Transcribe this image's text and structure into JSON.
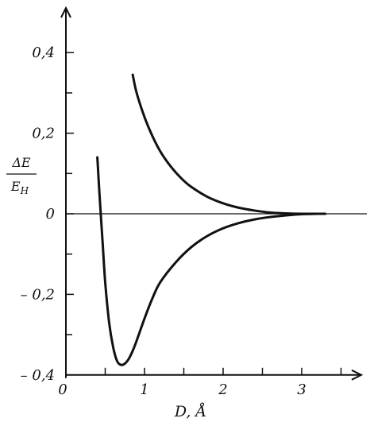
{
  "chart_data": {
    "type": "line",
    "title": "",
    "xlabel": "D, Å",
    "ylabel": {
      "numerator": "ΔE",
      "denominator": "E_H",
      "numerator_text": "ΔE",
      "denominator_text": "E",
      "denominator_sub": "H"
    },
    "xlim": [
      0,
      3.6
    ],
    "ylim": [
      -0.4,
      0.5
    ],
    "x_ticks": [
      0,
      1,
      2,
      3
    ],
    "x_tick_labels": [
      "0",
      "1",
      "2",
      "3"
    ],
    "y_ticks": [
      -0.4,
      -0.2,
      0,
      0.2,
      0.4
    ],
    "y_tick_labels": [
      "– 0,4",
      "– 0,2",
      "0",
      "0,2",
      "0,4"
    ],
    "grid": false,
    "legend": "none",
    "series": [
      {
        "x": [
          0.85,
          0.9,
          1.0,
          1.1,
          1.2,
          1.3,
          1.4,
          1.5,
          1.6,
          1.8,
          2.0,
          2.2,
          2.4,
          2.6,
          2.8,
          3.0,
          3.2,
          3.3
        ],
        "y": [
          0.345,
          0.3,
          0.24,
          0.193,
          0.155,
          0.126,
          0.102,
          0.082,
          0.066,
          0.042,
          0.026,
          0.015,
          0.008,
          0.003,
          0.001,
          0.0,
          0.0,
          0.0
        ]
      },
      {
        "x": [
          0.4,
          0.43,
          0.47,
          0.5,
          0.55,
          0.6,
          0.65,
          0.7,
          0.75,
          0.8,
          0.85,
          0.9,
          1.0,
          1.1,
          1.2,
          1.4,
          1.6,
          1.8,
          2.0,
          2.2,
          2.4,
          2.6,
          2.8,
          3.0,
          3.2
        ],
        "y": [
          0.14,
          0.04,
          -0.08,
          -0.17,
          -0.27,
          -0.33,
          -0.365,
          -0.375,
          -0.372,
          -0.36,
          -0.34,
          -0.315,
          -0.26,
          -0.21,
          -0.17,
          -0.12,
          -0.082,
          -0.055,
          -0.036,
          -0.023,
          -0.014,
          -0.008,
          -0.004,
          -0.001,
          0.0
        ]
      }
    ],
    "colors": {
      "line": "#111111",
      "background": "#ffffff"
    }
  }
}
